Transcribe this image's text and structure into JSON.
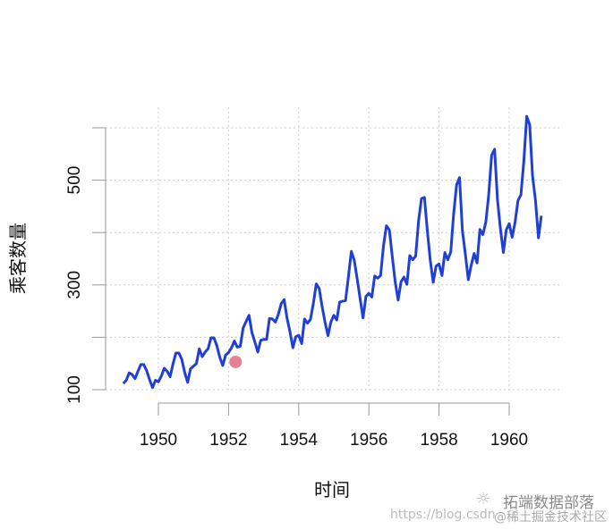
{
  "chart_data": {
    "type": "line",
    "title": "",
    "xlabel": "时间",
    "ylabel": "乘客数量",
    "xlim": [
      1948.6,
      1961.1
    ],
    "ylim": [
      100,
      600
    ],
    "xticks": [
      1950,
      1952,
      1954,
      1956,
      1958,
      1960
    ],
    "yticks": [
      100,
      200,
      300,
      400,
      500,
      600
    ],
    "ytick_labels": [
      "100",
      "300",
      "500"
    ],
    "grid": true,
    "start": 1949,
    "frequency": 12,
    "values": [
      112,
      118,
      132,
      129,
      121,
      135,
      148,
      148,
      136,
      119,
      104,
      118,
      115,
      126,
      141,
      135,
      125,
      149,
      170,
      170,
      158,
      133,
      114,
      140,
      145,
      150,
      178,
      163,
      172,
      178,
      199,
      199,
      184,
      162,
      146,
      166,
      171,
      180,
      193,
      181,
      183,
      218,
      230,
      242,
      209,
      191,
      172,
      194,
      196,
      196,
      236,
      235,
      229,
      243,
      264,
      272,
      237,
      211,
      180,
      201,
      204,
      188,
      235,
      227,
      234,
      264,
      302,
      293,
      259,
      229,
      203,
      229,
      242,
      233,
      267,
      269,
      270,
      315,
      364,
      347,
      312,
      274,
      237,
      278,
      284,
      277,
      317,
      313,
      318,
      374,
      413,
      405,
      355,
      306,
      271,
      306,
      315,
      301,
      356,
      348,
      355,
      422,
      465,
      467,
      404,
      347,
      305,
      336,
      340,
      318,
      362,
      348,
      363,
      435,
      491,
      505,
      404,
      359,
      310,
      337,
      360,
      342,
      406,
      396,
      420,
      472,
      548,
      559,
      463,
      407,
      362,
      405,
      417,
      391,
      419,
      461,
      472,
      535,
      622,
      606,
      508,
      461,
      390,
      432
    ],
    "highlight_point": {
      "x": 1952.2,
      "y": 153
    },
    "colors": {
      "line": "#1f3fd6",
      "point": "#e0607a",
      "grid": "#cccccc",
      "axis": "#999999"
    }
  },
  "watermark": {
    "brand": "拓端数据部落",
    "url": "https://blog.csdn",
    "community": "@稀土掘金技术社区"
  }
}
